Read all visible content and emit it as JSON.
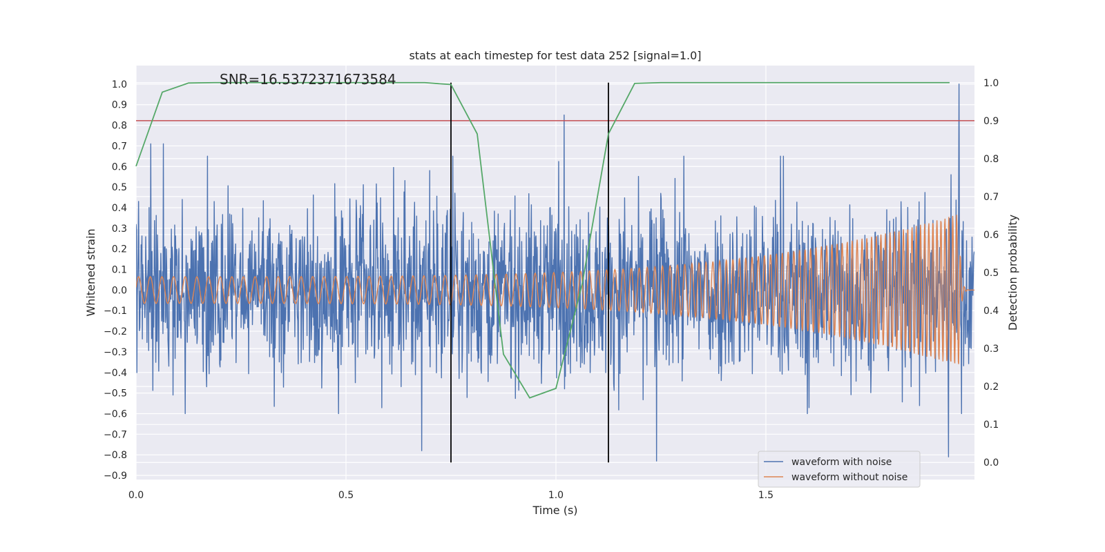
{
  "chart_data": {
    "type": "line",
    "title": "stats at each timestep for test data 252 [signal=1.0]",
    "xlabel": "Time (s)",
    "ylabel": "Whitened strain",
    "y2label": "Detection probability",
    "annotation": "SNR=16.5372371673584",
    "xlim": [
      0.0,
      2.0
    ],
    "ylim": [
      -0.92,
      1.09
    ],
    "y2lim": [
      -0.045,
      1.045
    ],
    "xticks": [
      0.0,
      0.5,
      1.0,
      1.5
    ],
    "xtick_labels": [
      "0.0",
      "0.5",
      "1.0",
      "1.5"
    ],
    "yticks": [
      1.0,
      0.9,
      0.8,
      0.7,
      0.6,
      0.5,
      0.4,
      0.3,
      0.2,
      0.1,
      0.0,
      -0.1,
      -0.2,
      -0.3,
      -0.4,
      -0.5,
      -0.6,
      -0.7,
      -0.8,
      -0.9
    ],
    "ytick_labels": [
      "1.0",
      "0.9",
      "0.8",
      "0.7",
      "0.6",
      "0.5",
      "0.4",
      "0.3",
      "0.2",
      "0.1",
      "0.0",
      "−0.1",
      "−0.2",
      "−0.3",
      "−0.4",
      "−0.5",
      "−0.6",
      "−0.7",
      "−0.8",
      "−0.9"
    ],
    "y2ticks": [
      1.0,
      0.9,
      0.8,
      0.7,
      0.6,
      0.5,
      0.4,
      0.3,
      0.2,
      0.1,
      0.0
    ],
    "y2tick_labels": [
      "1.0",
      "0.9",
      "0.8",
      "0.7",
      "0.6",
      "0.5",
      "0.4",
      "0.3",
      "0.2",
      "0.1",
      "0.0"
    ],
    "legend": {
      "position": "lower-right",
      "entries": [
        {
          "label": "waveform with noise",
          "color": "#4c72b0"
        },
        {
          "label": "waveform without noise",
          "color": "#dd8452"
        }
      ]
    },
    "threshold": {
      "y2": 0.9,
      "color": "#c44e52"
    },
    "vlines": {
      "x": [
        0.75,
        1.125
      ],
      "y2_from": 0.0,
      "y2_to": 1.0,
      "color": "#000000"
    },
    "series": [
      {
        "name": "waveform with noise",
        "axis": "left",
        "color": "#4c72b0",
        "generated": "noisy",
        "n_points": 2000,
        "x_range": [
          0.0,
          2.0
        ],
        "typical_range": [
          -0.6,
          0.65
        ],
        "peaks": [
          [
            0.035,
            0.71
          ],
          [
            0.065,
            0.71
          ],
          [
            0.68,
            -0.78
          ],
          [
            1.02,
            0.85
          ],
          [
            1.24,
            -0.83
          ],
          [
            1.96,
            1.0
          ],
          [
            1.935,
            -0.81
          ]
        ]
      },
      {
        "name": "waveform without noise",
        "axis": "left",
        "color": "#dd8452",
        "generated": "chirp",
        "n_points": 2400,
        "x_range": [
          0.0,
          2.0
        ],
        "amplitude_start": 0.065,
        "amplitude_end": 0.37,
        "frequency_start_hz": 36,
        "frequency_end_hz": 110,
        "merger_time": 1.96
      },
      {
        "name": "detection probability",
        "axis": "right",
        "color": "#55a868",
        "x": [
          0.0,
          0.0625,
          0.125,
          0.1875,
          0.25,
          0.3125,
          0.375,
          0.4375,
          0.5,
          0.5625,
          0.625,
          0.6875,
          0.75,
          0.8125,
          0.875,
          0.9375,
          1.0,
          1.0625,
          1.125,
          1.1875,
          1.25,
          1.3125,
          1.375,
          1.4375,
          1.5,
          1.5625,
          1.625,
          1.6875,
          1.75,
          1.8125,
          1.875,
          1.9375
        ],
        "y": [
          0.78,
          0.975,
          0.999,
          1.0,
          1.0,
          1.0,
          1.0,
          1.0,
          1.0,
          1.0,
          1.0,
          1.0,
          0.995,
          0.865,
          0.285,
          0.17,
          0.195,
          0.47,
          0.865,
          0.998,
          1.0,
          1.0,
          1.0,
          1.0,
          1.0,
          1.0,
          1.0,
          1.0,
          1.0,
          1.0,
          1.0,
          1.0
        ]
      }
    ]
  }
}
